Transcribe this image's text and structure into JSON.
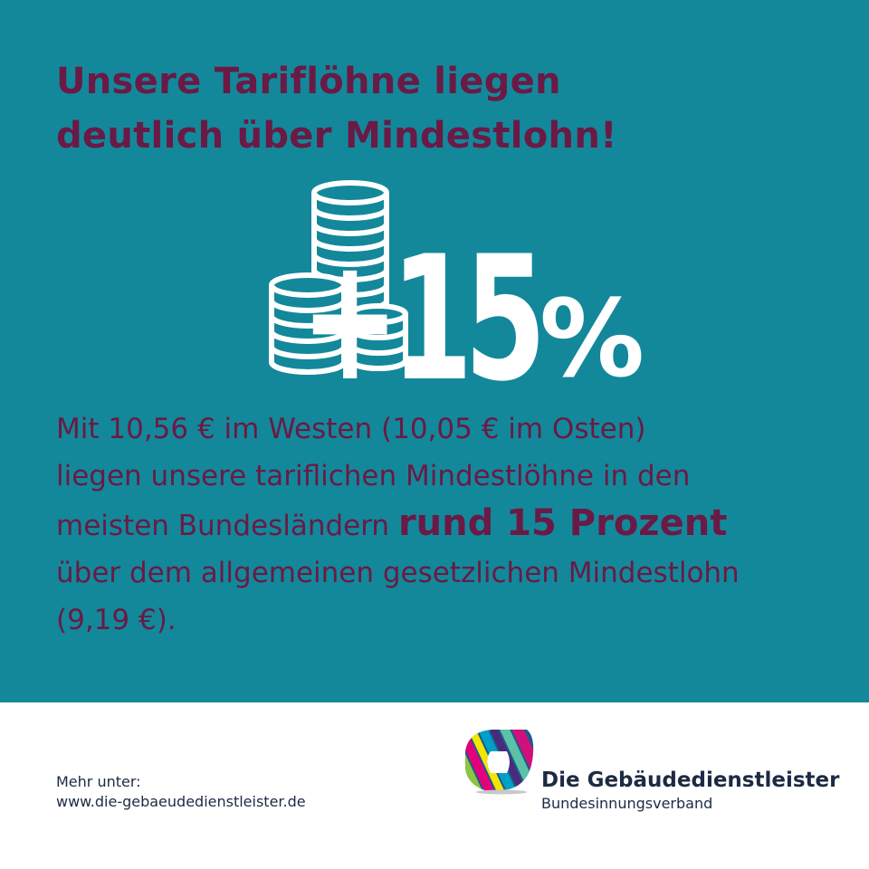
{
  "colors": {
    "background": "#13889a",
    "accent": "#6a1a45",
    "white": "#ffffff",
    "dark_text": "#1d2a44"
  },
  "headline": {
    "line1": "Unsere Tariflöhne liegen",
    "line2": "deutlich über Mindestlohn!"
  },
  "graphic": {
    "icon": "coin-stacks-icon",
    "value": "+15",
    "percent_sign": "%"
  },
  "body": {
    "line1": "Mit 10,56 € im Westen (10,05 € im Osten)",
    "line2": "liegen unsere tariflichen Mindestlöhne in den",
    "line3_start": "meisten Bundesländern",
    "line3_strong": "rund 15 Prozent",
    "line4": "über dem allgemeinen gesetzlichen Mindestlohn",
    "line5": "(9,19 €)."
  },
  "footer": {
    "more_label": "Mehr unter:",
    "url": "www.die-gebaeudedienstleister.de",
    "org_name": "Die Gebäudedienstleister",
    "org_subtitle": "Bundesinnungsverband",
    "logo_icon": "ribbon-logo-icon"
  }
}
